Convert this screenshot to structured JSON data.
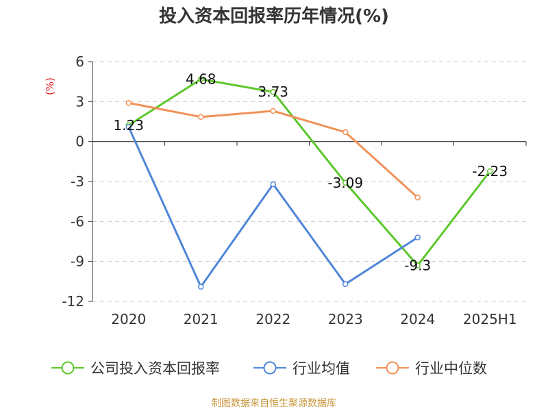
{
  "chart_data": {
    "type": "line",
    "title": "投入资本回报率历年情况(%)",
    "ylabel": "(%)",
    "xlabel": "",
    "categories": [
      "2020",
      "2021",
      "2022",
      "2023",
      "2024",
      "2025H1"
    ],
    "ylim": [
      -12,
      6
    ],
    "yticks": [
      6,
      3,
      0,
      -3,
      -6,
      -9,
      -12
    ],
    "grid": true,
    "legend_position": "bottom",
    "series": [
      {
        "name": "公司投入资本回报率",
        "color": "#5cc72a",
        "values": [
          1.23,
          4.68,
          3.73,
          -3.09,
          -9.3,
          -2.23
        ],
        "labels": [
          "1.23",
          "4.68",
          "3.73",
          "-3.09",
          "-9.3",
          "-2.23"
        ]
      },
      {
        "name": "行业均值",
        "color": "#4f86d9",
        "values": [
          1.1,
          -10.9,
          -3.2,
          -10.7,
          -7.2,
          null
        ]
      },
      {
        "name": "行业中位数",
        "color": "#f29158",
        "values": [
          2.9,
          1.85,
          2.3,
          0.7,
          -4.2,
          null
        ]
      }
    ]
  },
  "source": "制图数据来自恒生聚源数据库"
}
